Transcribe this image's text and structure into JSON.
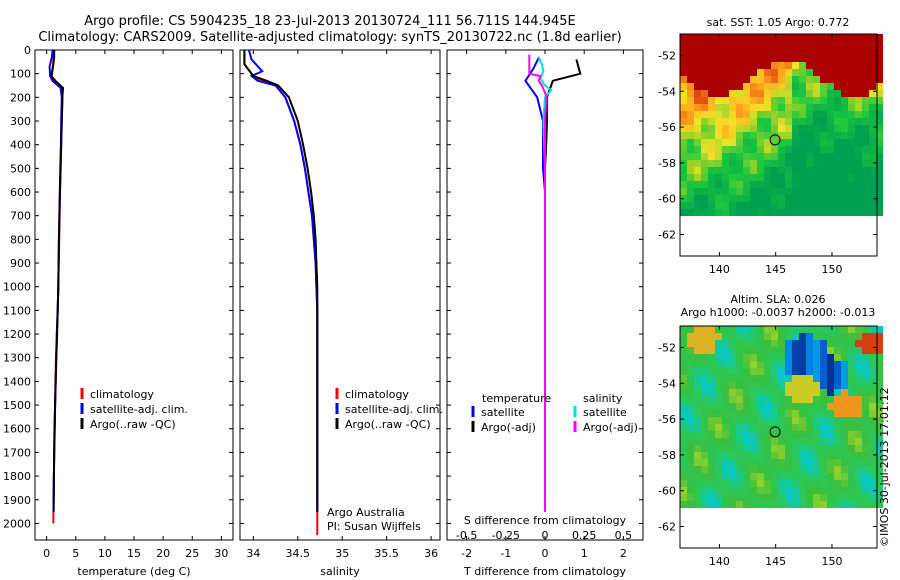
{
  "header": {
    "line1": "Argo profile: CS 5904235_18 23-Jul-2013 20130724_111 56.711S 144.945E",
    "line2": "Climatology: CARS2009. Satellite-adjusted climatology: synTS_20130722.nc (1.8d earlier)"
  },
  "colors": {
    "climatology": "#ff0000",
    "satellite": "#0000ff",
    "argo": "#000000",
    "sal_satellite": "#00e0e0",
    "sal_argo": "#ff00ff"
  },
  "chart_data": [
    {
      "type": "line",
      "name": "temperature-panel",
      "xlabel": "temperature (deg C)",
      "ylabel": "",
      "xlim": [
        -2,
        32
      ],
      "ylim": [
        2070,
        0
      ],
      "xticks": [
        0,
        5,
        10,
        15,
        20,
        25,
        30
      ],
      "yticks": [
        0,
        100,
        200,
        300,
        400,
        500,
        600,
        700,
        800,
        900,
        1000,
        1100,
        1200,
        1300,
        1400,
        1500,
        1600,
        1700,
        1800,
        1900,
        2000
      ],
      "legend": [
        "climatology",
        "satellite-adj. clim.",
        "Argo(..raw -QC)"
      ],
      "series": [
        {
          "name": "climatology",
          "x": [
            1.2,
            1.2,
            1.0,
            0.9,
            1.0,
            2.5,
            2.7,
            2.6,
            2.5,
            2.4,
            2.3,
            2.15,
            2.0,
            1.9,
            1.75,
            1.6,
            1.5,
            1.45,
            1.35,
            1.3,
            1.25,
            1.15
          ],
          "y": [
            0,
            40,
            80,
            110,
            130,
            160,
            200,
            300,
            400,
            500,
            600,
            800,
            1000,
            1100,
            1200,
            1300,
            1400,
            1500,
            1600,
            1700,
            1800,
            2000
          ]
        },
        {
          "name": "satellite-adj. clim.",
          "x": [
            1.0,
            0.9,
            0.5,
            0.6,
            1.0,
            2.4,
            2.6,
            2.5,
            2.45,
            2.35,
            2.25,
            2.1,
            2.0,
            1.9,
            1.75,
            1.65,
            1.55,
            1.45,
            1.4,
            1.3,
            1.25,
            1.2
          ],
          "y": [
            0,
            30,
            70,
            110,
            130,
            160,
            200,
            300,
            400,
            500,
            600,
            800,
            1000,
            1100,
            1200,
            1300,
            1400,
            1500,
            1600,
            1700,
            1800,
            1950
          ]
        },
        {
          "name": "Argo(..raw -QC)",
          "x": [
            1.3,
            1.3,
            1.1,
            0.8,
            1.5,
            2.8,
            2.7,
            2.6,
            2.5,
            2.4,
            2.3,
            2.1,
            2.0,
            1.9,
            1.8,
            1.65,
            1.55,
            1.45,
            1.35,
            1.3,
            1.25,
            1.2
          ],
          "y": [
            0,
            30,
            70,
            110,
            130,
            160,
            200,
            300,
            400,
            500,
            600,
            800,
            1000,
            1100,
            1200,
            1300,
            1400,
            1500,
            1600,
            1700,
            1800,
            1950
          ]
        }
      ]
    },
    {
      "type": "line",
      "name": "salinity-panel",
      "xlabel": "salinity",
      "xlim": [
        33.85,
        36.1
      ],
      "ylim": [
        2070,
        0
      ],
      "xticks": [
        34,
        34.5,
        35,
        35.5,
        36
      ],
      "legend": [
        "climatology",
        "satellite-adj. clim.",
        "Argo(..raw -QC)"
      ],
      "annotation": [
        "Argo Australia",
        "PI: Susan Wijffels"
      ],
      "series": [
        {
          "name": "climatology",
          "x": [
            33.9,
            33.9,
            34.0,
            34.1,
            34.25,
            34.36,
            34.46,
            34.53,
            34.58,
            34.62,
            34.66,
            34.68,
            34.7,
            34.71,
            34.72,
            34.72,
            34.72,
            34.72,
            34.72,
            34.72,
            34.72,
            34.72
          ],
          "y": [
            0,
            60,
            110,
            130,
            150,
            200,
            300,
            400,
            500,
            600,
            700,
            800,
            900,
            1000,
            1100,
            1200,
            1400,
            1600,
            1800,
            1900,
            2000,
            2050
          ]
        },
        {
          "name": "satellite-adj. clim.",
          "x": [
            33.95,
            33.98,
            34.1,
            33.98,
            34.05,
            34.25,
            34.36,
            34.46,
            34.53,
            34.58,
            34.62,
            34.66,
            34.68,
            34.7,
            34.71,
            34.72,
            34.72,
            34.72,
            34.72,
            34.72,
            34.72
          ],
          "y": [
            0,
            40,
            90,
            110,
            130,
            150,
            200,
            300,
            400,
            500,
            600,
            700,
            800,
            900,
            1000,
            1100,
            1200,
            1400,
            1600,
            1800,
            1950
          ]
        },
        {
          "name": "Argo(..raw -QC)",
          "x": [
            33.9,
            33.9,
            34.0,
            34.15,
            34.28,
            34.4,
            34.5,
            34.56,
            34.61,
            34.65,
            34.68,
            34.7,
            34.71,
            34.72,
            34.72,
            34.72,
            34.72,
            34.72,
            34.72,
            34.72
          ],
          "y": [
            0,
            60,
            110,
            130,
            150,
            200,
            300,
            400,
            500,
            600,
            700,
            800,
            900,
            1000,
            1200,
            1400,
            1600,
            1800,
            1900,
            1950
          ]
        }
      ]
    },
    {
      "type": "line",
      "name": "difference-panel",
      "xlabel": "T difference from climatology",
      "xlabel2": "S difference from climatology",
      "xlim": [
        -2.5,
        2.5
      ],
      "ylim": [
        2070,
        0
      ],
      "xticks": [
        -2,
        -1,
        0,
        1,
        2
      ],
      "xticks2": [
        -0.5,
        -0.25,
        0,
        0.25,
        0.5
      ],
      "legend_titles": [
        "temperature",
        "salinity"
      ],
      "legend": [
        "satellite",
        "Argo(-adj)",
        "satellite",
        "Argo(-adj)"
      ],
      "series": [
        {
          "name": "T satellite",
          "x": [
            -0.15,
            -0.3,
            -0.5,
            -0.2,
            -0.05,
            -0.05,
            -0.05,
            0,
            0,
            0,
            0,
            0,
            0,
            0,
            0
          ],
          "y": [
            30,
            80,
            130,
            200,
            300,
            400,
            500,
            600,
            800,
            1000,
            1200,
            1400,
            1600,
            1800,
            1950
          ]
        },
        {
          "name": "T Argo(-adj)",
          "x": [
            0.8,
            0.9,
            0.2,
            0.05,
            0.05,
            0.03,
            0,
            0,
            0,
            0,
            0,
            0,
            0,
            0
          ],
          "y": [
            40,
            100,
            130,
            200,
            300,
            400,
            500,
            700,
            900,
            1100,
            1300,
            1500,
            1700,
            1950
          ]
        },
        {
          "name": "S satellite",
          "x": [
            -0.04,
            -0.02,
            -0.01,
            -0.03,
            0.0,
            0.04,
            0.0,
            -0.01,
            0.0,
            0.0,
            0.0,
            0.0,
            0.0,
            0.0
          ],
          "y": [
            30,
            60,
            90,
            120,
            150,
            170,
            200,
            300,
            500,
            800,
            1100,
            1400,
            1700,
            1950
          ]
        },
        {
          "name": "S Argo(-adj)",
          "x": [
            -0.1,
            -0.1,
            -0.03,
            -0.04,
            -0.02,
            0.0,
            0.01,
            0.0,
            0.0,
            0.0,
            0.0,
            0.0,
            0.0
          ],
          "y": [
            20,
            100,
            110,
            130,
            150,
            180,
            200,
            300,
            500,
            800,
            1200,
            1600,
            1950
          ]
        }
      ]
    },
    {
      "type": "heatmap",
      "name": "sst-map",
      "title": "sat. SST: 1.05  Argo: 0.772",
      "xlim": [
        136.5,
        154
      ],
      "ylim": [
        -63.2,
        -50.8
      ],
      "xticks": [
        140,
        145,
        150
      ],
      "yticks": [
        -52,
        -54,
        -56,
        -58,
        -60,
        -62
      ],
      "marker": {
        "lon": 144.945,
        "lat": -56.711
      }
    },
    {
      "type": "heatmap",
      "name": "sla-map",
      "title": "Altim. SLA: 0.026",
      "subtitle": "Argo h1000: -0.0037  h2000: -0.013",
      "xlim": [
        136.5,
        154
      ],
      "ylim": [
        -63.2,
        -50.8
      ],
      "xticks": [
        140,
        145,
        150
      ],
      "yticks": [
        -52,
        -54,
        -56,
        -58,
        -60,
        -62
      ],
      "marker": {
        "lon": 144.945,
        "lat": -56.711
      }
    }
  ],
  "footer": {
    "timestamp": "©IMOS 30-Jul-2013 17:01:12"
  }
}
